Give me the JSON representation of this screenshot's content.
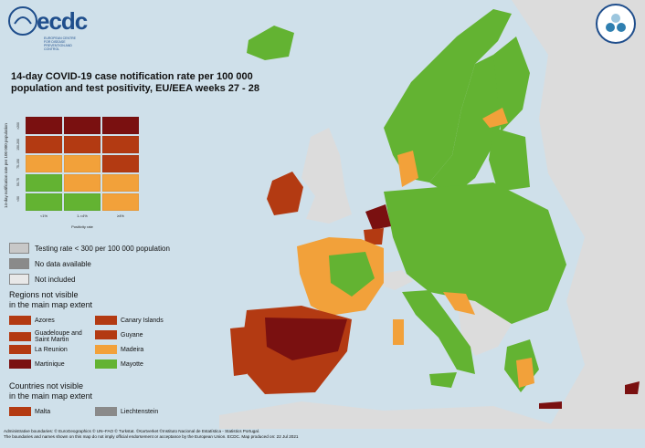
{
  "logo": {
    "brand": "ecdc",
    "subtitle": "EUROPEAN CENTRE FOR DISEASE PREVENTION AND CONTROL"
  },
  "map": {
    "title": "14-day COVID-19 case notification rate per 100 000 population and test positivity, EU/EEA weeks 27 - 28"
  },
  "matrix": {
    "y_axis_title": "14-day notification rate per 100 000 population",
    "y_ticks": [
      ">200",
      "150-200",
      "75-150",
      "50-75",
      "<50"
    ],
    "x_ticks": [
      "<1%",
      "1-<4%",
      "≥4%"
    ],
    "x_axis_title": "Positivity rate",
    "cells": [
      [
        "#7a1010",
        "#7a1010",
        "#7a1010"
      ],
      [
        "#b33a12",
        "#b33a12",
        "#b33a12"
      ],
      [
        "#f2a13a",
        "#f2a13a",
        "#b33a12"
      ],
      [
        "#63b332",
        "#f2a13a",
        "#f2a13a"
      ],
      [
        "#63b332",
        "#63b332",
        "#f2a13a"
      ]
    ]
  },
  "legend": {
    "testing_rate": "Testing rate < 300 per 100 000 population",
    "no_data": "No data available",
    "not_included": "Not included"
  },
  "regions": {
    "title_line1": "Regions not visible",
    "title_line2": "in the main map extent",
    "items": [
      {
        "label": "Azores",
        "color": "#b33a12"
      },
      {
        "label": "Canary Islands",
        "color": "#b33a12"
      },
      {
        "label": "Guadeloupe and Saint Martin",
        "color": "#b33a12"
      },
      {
        "label": "Guyane",
        "color": "#b33a12"
      },
      {
        "label": "La Reunion",
        "color": "#b33a12"
      },
      {
        "label": "Madeira",
        "color": "#f2a13a"
      },
      {
        "label": "Martinique",
        "color": "#7a1010"
      },
      {
        "label": "Mayotte",
        "color": "#63b332"
      }
    ]
  },
  "countries": {
    "title_line1": "Countries not visible",
    "title_line2": "in the main map extent",
    "items": [
      {
        "label": "Malta",
        "color": "#b33a12"
      },
      {
        "label": "Liechtenstein",
        "color": "#8a8a8a"
      }
    ]
  },
  "footer": {
    "line1": "Administrative boundaries: © EuroGeographics © UN–FAO © Turkstat. ©Kartverket ©Instituto Nacional de Estatística - Statistics Portugal.",
    "line2": "The boundaries and names shown on this map do not imply official endorsement or acceptance by the European Union. ECDC. Map produced on: 22 Jul 2021"
  },
  "colors": {
    "sea": "#cfe0ea",
    "green": "#63b332",
    "orange": "#f2a13a",
    "red": "#b33a12",
    "dark_red": "#7a1010",
    "grey_not_included": "#dcdcdc",
    "grey_no_data": "#8a8a8a",
    "grey_testing": "#c8c8c8"
  },
  "icons": {
    "layers": "layers-icon"
  }
}
